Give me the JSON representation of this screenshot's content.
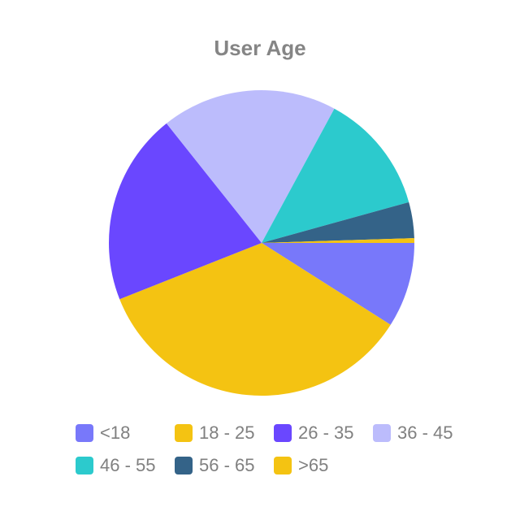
{
  "chart_data": {
    "type": "pie",
    "title": "User Age",
    "categories": [
      "<18",
      "18 - 25",
      "26 - 35",
      "36 - 45",
      "46 - 55",
      "56 - 65",
      ">65"
    ],
    "values": [
      9.0,
      35.0,
      20.3,
      18.6,
      12.8,
      3.8,
      0.5
    ],
    "colors": [
      "#7878FA",
      "#F4C312",
      "#6A47FF",
      "#BCBCFC",
      "#2CCACD",
      "#346388",
      "#F4C312"
    ],
    "legend_position": "bottom"
  }
}
